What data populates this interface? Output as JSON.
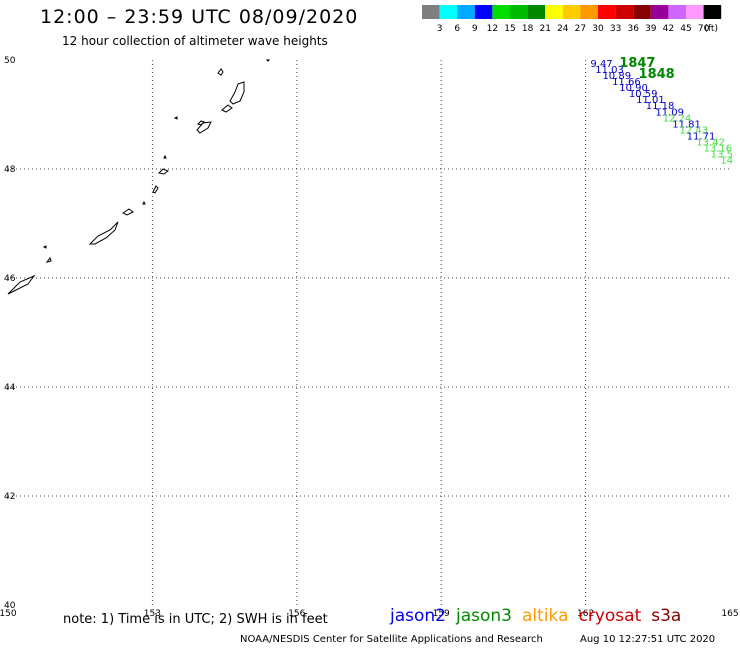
{
  "header": {
    "title": "12:00 – 23:59 UTC 08/09/2020",
    "subtitle": "12 hour collection of altimeter wave heights"
  },
  "colorbar": {
    "colors": [
      "#7f7f7f",
      "#00ffff",
      "#00aaff",
      "#0000ff",
      "#00dd00",
      "#00bb00",
      "#008800",
      "#ffff00",
      "#ffcc00",
      "#ff9900",
      "#ff0000",
      "#cc0000",
      "#880000",
      "#990099",
      "#cc66ff",
      "#ff99ff",
      "#000000"
    ],
    "labels": [
      "3",
      "6",
      "9",
      "12",
      "15",
      "18",
      "21",
      "24",
      "27",
      "30",
      "33",
      "36",
      "39",
      "42",
      "45",
      "70"
    ],
    "unit": "(ft)"
  },
  "map": {
    "lon_range": [
      150,
      165
    ],
    "lat_range": [
      40,
      50
    ],
    "lon_ticks": [
      "150",
      "153",
      "156",
      "159",
      "162",
      "165"
    ],
    "lat_ticks": [
      "50",
      "48",
      "46",
      "44",
      "42",
      "40"
    ],
    "grid": true,
    "tracks": [
      {
        "time": "1847",
        "time_lon": 162.7,
        "time_lat": 49.87,
        "color": "#008800"
      },
      {
        "time": "1848",
        "time_lon": 163.1,
        "time_lat": 49.67,
        "color": "#008800"
      }
    ],
    "observations": [
      {
        "value": "9.47",
        "lon": 162.1,
        "lat": 49.87,
        "color": "#0000cc"
      },
      {
        "value": "11.03",
        "lon": 162.2,
        "lat": 49.76,
        "color": "#0000cc"
      },
      {
        "value": "10.89",
        "lon": 162.35,
        "lat": 49.65,
        "color": "#0000cc"
      },
      {
        "value": "11.66",
        "lon": 162.55,
        "lat": 49.54,
        "color": "#0000cc"
      },
      {
        "value": "10.90",
        "lon": 162.7,
        "lat": 49.43,
        "color": "#0000cc"
      },
      {
        "value": "10.59",
        "lon": 162.9,
        "lat": 49.32,
        "color": "#0000cc"
      },
      {
        "value": "11.01",
        "lon": 163.05,
        "lat": 49.21,
        "color": "#0000cc"
      },
      {
        "value": "11.18",
        "lon": 163.25,
        "lat": 49.1,
        "color": "#0000cc"
      },
      {
        "value": "11.09",
        "lon": 163.45,
        "lat": 48.98,
        "color": "#0000cc"
      },
      {
        "value": "12.24",
        "lon": 163.6,
        "lat": 48.87,
        "color": "#44dd44"
      },
      {
        "value": "11.81",
        "lon": 163.8,
        "lat": 48.76,
        "color": "#0000cc"
      },
      {
        "value": "12.43",
        "lon": 163.95,
        "lat": 48.65,
        "color": "#44dd44"
      },
      {
        "value": "11.71",
        "lon": 164.1,
        "lat": 48.54,
        "color": "#0000cc"
      },
      {
        "value": "13.42",
        "lon": 164.3,
        "lat": 48.43,
        "color": "#44dd44"
      },
      {
        "value": "13.16",
        "lon": 164.45,
        "lat": 48.32,
        "color": "#44dd44"
      },
      {
        "value": "13.5",
        "lon": 164.6,
        "lat": 48.21,
        "color": "#44dd44"
      },
      {
        "value": "14",
        "lon": 164.8,
        "lat": 48.1,
        "color": "#44dd44"
      }
    ]
  },
  "footer": {
    "note": "note:  1) Time is in UTC;  2) SWH is in feet",
    "satellites": [
      {
        "name": "jason2",
        "color": "#0000ee"
      },
      {
        "name": "jason3",
        "color": "#008800"
      },
      {
        "name": "altika",
        "color": "#ff9900"
      },
      {
        "name": "cryosat",
        "color": "#cc0000"
      },
      {
        "name": "s3a",
        "color": "#880000"
      }
    ],
    "credit": "NOAA/NESDIS Center for Satellite Applications and Research",
    "timestamp": "Aug 10 12:27:51 UTC 2020"
  }
}
